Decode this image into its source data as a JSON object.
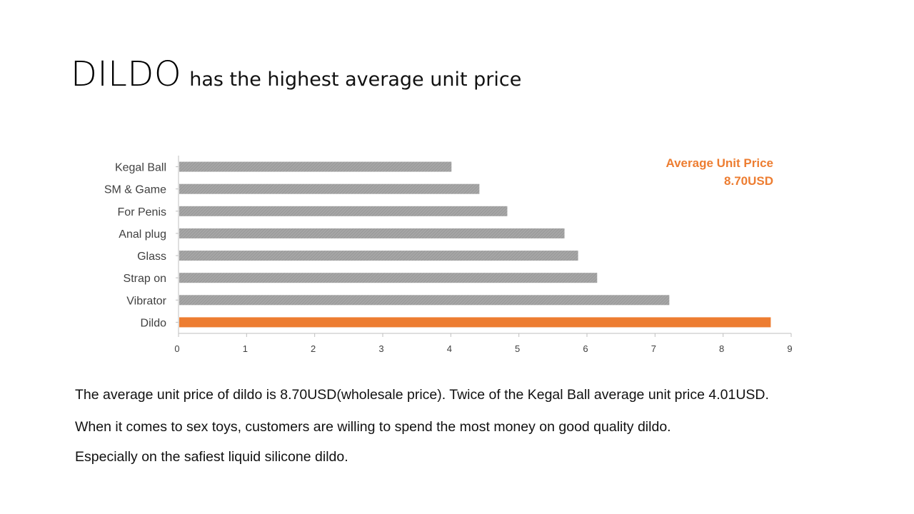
{
  "slide": {
    "title_main": "DILDO",
    "title_rest": "has the highest average unit price",
    "callout_label": "Average Unit Price",
    "callout_value": "8.70USD",
    "paragraphs": [
      "The average unit price of dildo is 8.70USD(wholesale price). Twice of the Kegal Ball average unit price 4.01USD.",
      "When it comes to sex toys, customers are willing to spend the most money on good quality dildo.",
      "Especially on the safiest liquid silicone dildo."
    ]
  },
  "colors": {
    "bar_default": "#A6A6A6",
    "bar_highlight": "#ED7D31",
    "axis": "#BFBFBF",
    "label": "#404040"
  },
  "chart_data": {
    "type": "bar",
    "orientation": "horizontal",
    "categories": [
      "Kegal Ball",
      "SM & Game",
      "For Penis",
      "Anal plug",
      "Glass",
      "Strap on",
      "Vibrator",
      "Dildo"
    ],
    "values": [
      4.01,
      4.42,
      4.83,
      5.67,
      5.87,
      6.15,
      7.21,
      8.7
    ],
    "highlight": "Dildo",
    "xlim": [
      0,
      9
    ],
    "xticks": [
      0,
      1,
      2,
      3,
      4,
      5,
      6,
      7,
      8,
      9
    ],
    "grid": false
  }
}
